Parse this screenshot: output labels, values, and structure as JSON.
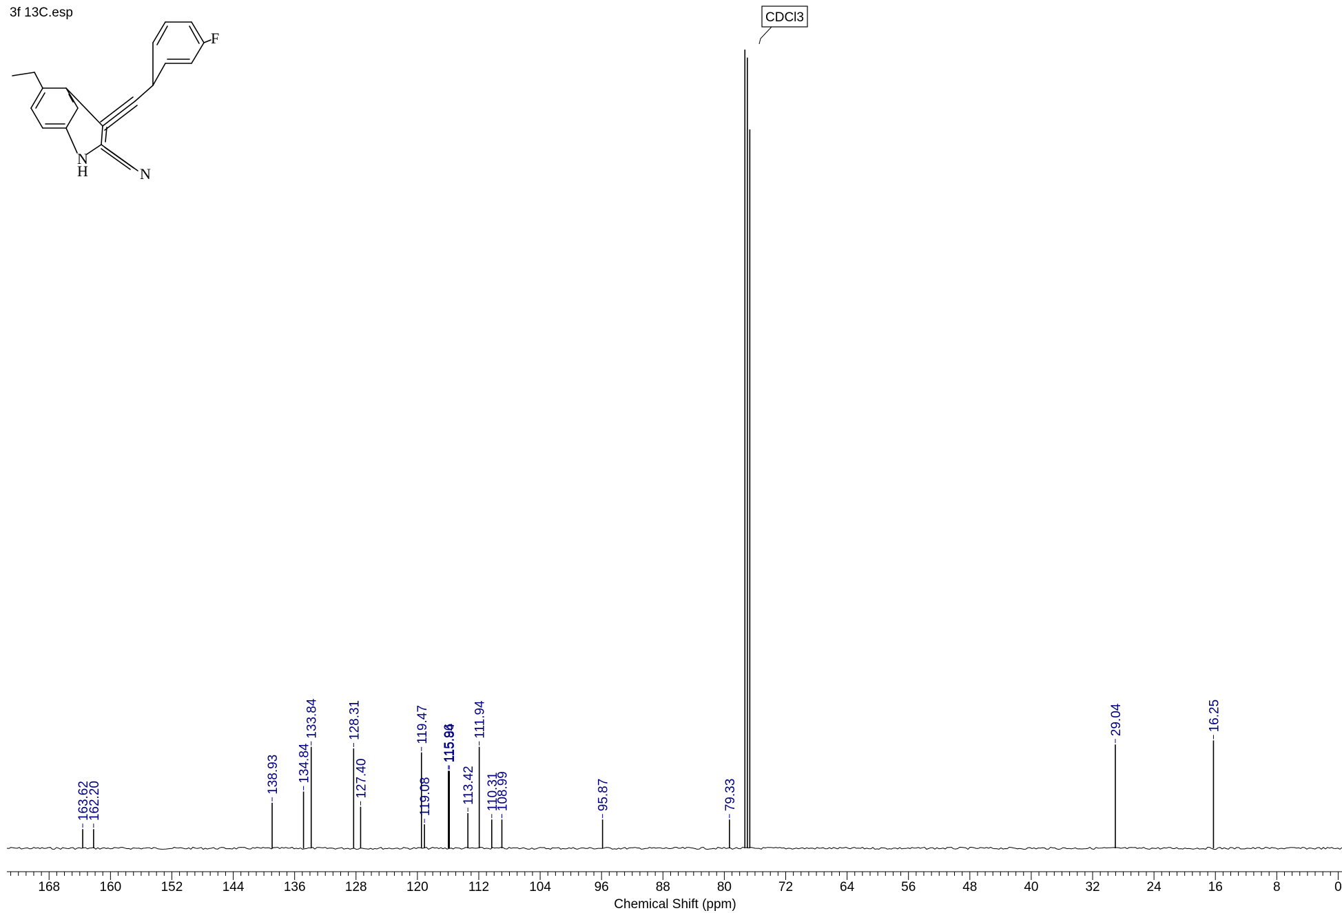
{
  "title": "3f 13C.esp",
  "molecule": {
    "atom_f": "F",
    "atom_n_ring": "N",
    "atom_h_ring": "H",
    "atom_n_nitrile": "N"
  },
  "chart_data": {
    "type": "line",
    "xlabel": "Chemical Shift (ppm)",
    "xlim": [
      173.5,
      -0.5
    ],
    "x_reversed": true,
    "x_ticks": [
      168,
      160,
      152,
      144,
      136,
      128,
      120,
      112,
      104,
      96,
      88,
      80,
      72,
      64,
      56,
      48,
      40,
      32,
      24,
      16,
      8,
      0
    ],
    "x_tick_labels": [
      "168",
      "160",
      "152",
      "144",
      "136",
      "128",
      "120",
      "112",
      "104",
      "96",
      "88",
      "80",
      "72",
      "64",
      "56",
      "48",
      "40",
      "32",
      "24",
      "16",
      "8",
      "0"
    ],
    "solvent_label": "CDCl3",
    "solvent_peaks": [
      {
        "ppm": 77.32,
        "intensity": 1.0
      },
      {
        "ppm": 77.0,
        "intensity": 0.99
      },
      {
        "ppm": 76.68,
        "intensity": 0.9
      }
    ],
    "peaks": [
      {
        "ppm": 163.62,
        "label": "163.62",
        "intensity": 0.024
      },
      {
        "ppm": 162.2,
        "label": "162.20",
        "intensity": 0.024
      },
      {
        "ppm": 138.93,
        "label": "138.93",
        "intensity": 0.057
      },
      {
        "ppm": 134.84,
        "label": "134.84",
        "intensity": 0.071
      },
      {
        "ppm": 133.84,
        "label": "133.84",
        "intensity": 0.127
      },
      {
        "ppm": 128.31,
        "label": "128.31",
        "intensity": 0.125
      },
      {
        "ppm": 127.4,
        "label": "127.40",
        "intensity": 0.052
      },
      {
        "ppm": 119.47,
        "label": "119.47",
        "intensity": 0.12
      },
      {
        "ppm": 119.08,
        "label": "119.08",
        "intensity": 0.03
      },
      {
        "ppm": 115.96,
        "label": "115.96",
        "intensity": 0.097
      },
      {
        "ppm": 115.84,
        "label": "115.84",
        "intensity": 0.097
      },
      {
        "ppm": 113.42,
        "label": "113.42",
        "intensity": 0.044
      },
      {
        "ppm": 111.94,
        "label": "111.94",
        "intensity": 0.127
      },
      {
        "ppm": 110.31,
        "label": "110.31",
        "intensity": 0.036
      },
      {
        "ppm": 108.99,
        "label": "108.99",
        "intensity": 0.036
      },
      {
        "ppm": 95.87,
        "label": "95.87",
        "intensity": 0.036
      },
      {
        "ppm": 79.33,
        "label": "79.33",
        "intensity": 0.036
      },
      {
        "ppm": 29.04,
        "label": "29.04",
        "intensity": 0.13
      },
      {
        "ppm": 16.25,
        "label": "16.25",
        "intensity": 0.135
      }
    ]
  }
}
